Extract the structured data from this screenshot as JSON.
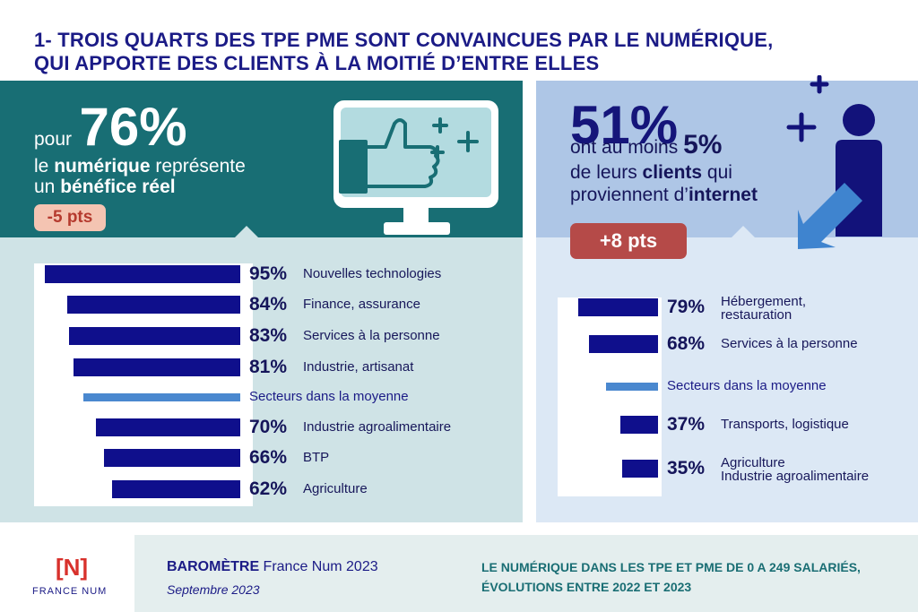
{
  "title": {
    "line1": "1- TROIS QUARTS DES TPE PME SONT CONVAINCUES PAR LE NUMÉRIQUE,",
    "line2": "QUI APPORTE DES CLIENTS À LA MOITIÉ D’ENTRE ELLES"
  },
  "left": {
    "prefix": "pour",
    "big": "76%",
    "line2_a": "le ",
    "line2_b": "numérique",
    "line2_c": " représente",
    "line3_a": "un ",
    "line3_b": "bénéfice réel",
    "badge": "-5 pts",
    "colors": {
      "panel": "#186e74",
      "bars_bg": "#cfe3e6",
      "bar": "#0f0f8c",
      "avg": "#4a88cf",
      "badge": "#f4c4b2"
    }
  },
  "right": {
    "big": "51%",
    "line2_a": "ont au moins ",
    "line2_b": "5%",
    "line3_a": "de leurs ",
    "line3_b": "clients",
    "line3_c": " qui",
    "line4_a": "proviennent d’",
    "line4_b": "internet",
    "badge": "+8 pts",
    "colors": {
      "panel": "#aec6e6",
      "bars_bg": "#dce8f5",
      "badge": "#b54a48"
    }
  },
  "chart_data": [
    {
      "type": "bar",
      "orientation": "horizontal",
      "categories": [
        "Nouvelles technologies",
        "Finance, assurance",
        "Services à la personne",
        "Industrie, artisanat",
        "Secteurs dans la moyenne",
        "Industrie agroalimentaire",
        "BTP",
        "Agriculture"
      ],
      "values": [
        95,
        84,
        83,
        81,
        76,
        70,
        66,
        62
      ],
      "value_labels": [
        "95%",
        "84%",
        "83%",
        "81%",
        "",
        "70%",
        "66%",
        "62%"
      ]
    },
    {
      "type": "bar",
      "orientation": "horizontal",
      "categories": [
        "Hébergement,\nrestauration",
        "Services à la personne",
        "Secteurs dans la moyenne",
        "Transports, logistique",
        "Agriculture\nIndustrie agroalimentaire"
      ],
      "values": [
        79,
        68,
        51,
        37,
        35
      ],
      "value_labels": [
        "79%",
        "68%",
        "",
        "37%",
        "35%"
      ]
    }
  ],
  "footer": {
    "logo_mark": "[N]",
    "logo_text": "FRANCE NUM",
    "barometre_a": "BAROMÈTRE",
    "barometre_b": " France Num 2023",
    "date": "Septembre 2023",
    "desc1": "LE NUMÉRIQUE DANS LES TPE ET PME DE 0 A 249 SALARIÉS,",
    "desc2": "ÉVOLUTIONS ENTRE 2022 ET 2023"
  }
}
